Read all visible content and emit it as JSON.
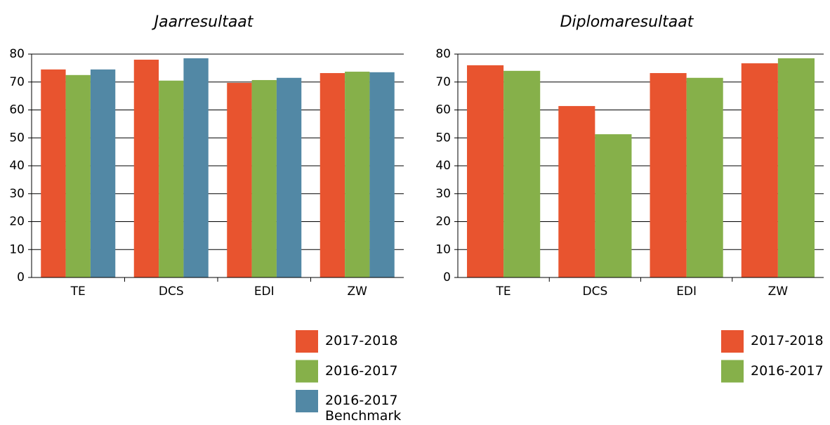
{
  "chart_data": [
    {
      "type": "bar",
      "title": "Jaarresultaat",
      "categories": [
        "TE",
        "DCS",
        "EDI",
        "ZW"
      ],
      "series": [
        {
          "name": "2017-2018",
          "color": "#e8542f",
          "values": [
            74.5,
            78,
            69.7,
            73.2
          ]
        },
        {
          "name": "2016-2017",
          "color": "#86b04a",
          "values": [
            72.5,
            70.5,
            70.7,
            73.7
          ]
        },
        {
          "name": "2016-2017 Benchmark",
          "color": "#5288a5",
          "values": [
            74.5,
            78.5,
            71.5,
            73.5
          ]
        }
      ],
      "ylim": [
        0,
        80
      ],
      "yticks": [
        0,
        10,
        20,
        30,
        40,
        50,
        60,
        70,
        80
      ],
      "grid": true,
      "legend": "bottom-right"
    },
    {
      "type": "bar",
      "title": "Diplomaresultaat",
      "categories": [
        "TE",
        "DCS",
        "EDI",
        "ZW"
      ],
      "series": [
        {
          "name": "2017-2018",
          "color": "#e8542f",
          "values": [
            76,
            61.4,
            73.2,
            76.7
          ]
        },
        {
          "name": "2016-2017",
          "color": "#86b04a",
          "values": [
            74,
            51.3,
            71.5,
            78.5
          ]
        }
      ],
      "ylim": [
        0,
        80
      ],
      "yticks": [
        0,
        10,
        20,
        30,
        40,
        50,
        60,
        70,
        80
      ],
      "grid": true,
      "legend": "bottom-right"
    }
  ]
}
